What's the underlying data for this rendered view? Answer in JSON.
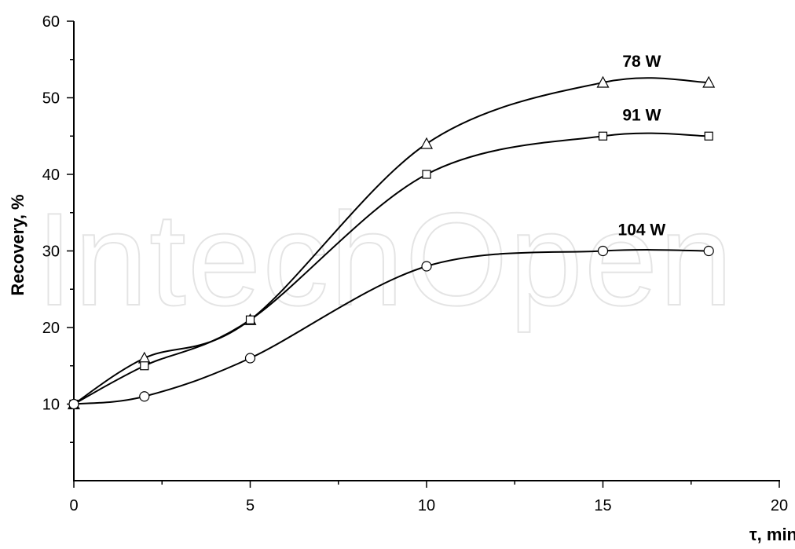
{
  "watermark": "IntechOpen",
  "chart_data": {
    "type": "line",
    "xlabel": "τ, min",
    "ylabel": "Recovery, %",
    "xlim": [
      0,
      20
    ],
    "ylim": [
      0,
      60
    ],
    "xticks": [
      0,
      5,
      10,
      15,
      20
    ],
    "yticks": [
      10,
      20,
      30,
      40,
      50,
      60
    ],
    "grid": false,
    "series": [
      {
        "name": "78 W",
        "marker": "triangle",
        "x": [
          0,
          2,
          5,
          10,
          15,
          18
        ],
        "y": [
          10,
          16,
          21,
          44,
          52,
          52
        ]
      },
      {
        "name": "91 W",
        "marker": "square",
        "x": [
          0,
          2,
          5,
          10,
          15,
          18
        ],
        "y": [
          10,
          15,
          21,
          40,
          45,
          45
        ]
      },
      {
        "name": "104 W",
        "marker": "circle",
        "x": [
          0,
          2,
          5,
          10,
          15,
          18
        ],
        "y": [
          10,
          11,
          16,
          28,
          30,
          30
        ]
      }
    ]
  }
}
